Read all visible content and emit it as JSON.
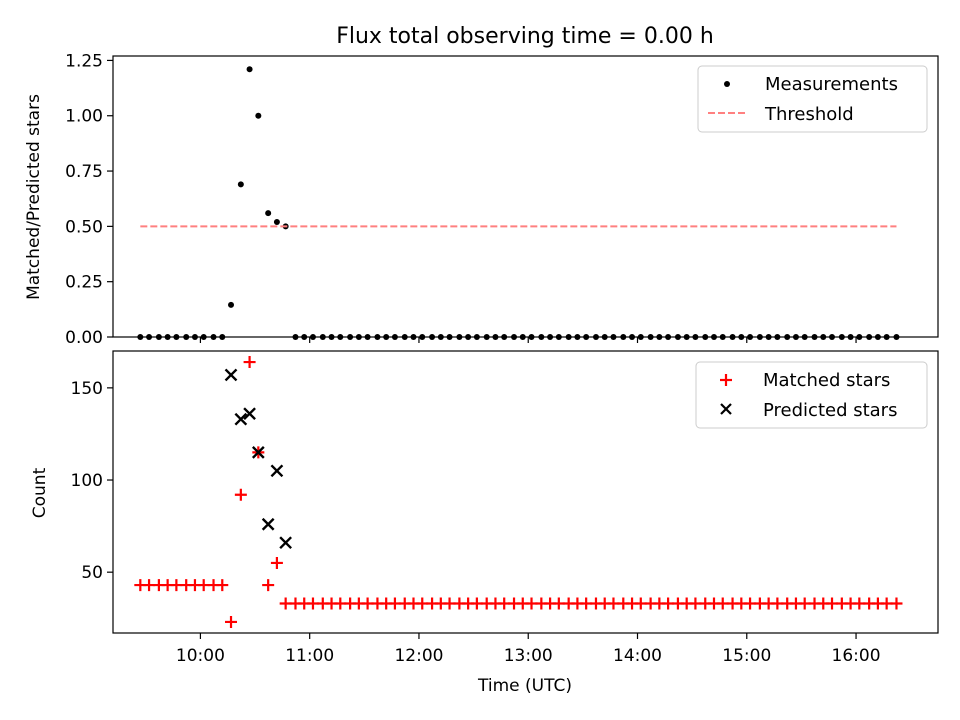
{
  "chart_data": [
    {
      "type": "scatter",
      "title": "Flux total observing time = 0.00 h",
      "xlabel": "",
      "ylabel": "Matched/Predicted stars",
      "xlim": [
        9.2,
        16.75
      ],
      "ylim": [
        0,
        1.27
      ],
      "yticks": [
        0,
        0.25,
        0.5,
        0.75,
        1.0,
        1.25
      ],
      "ytick_labels": [
        "0.00",
        "0.25",
        "0.50",
        "0.75",
        "1.00",
        "1.25"
      ],
      "legend": {
        "position": "top-right",
        "entries": [
          "Measurements",
          "Threshold"
        ]
      },
      "series": [
        {
          "name": "Measurements",
          "kind": "scatter",
          "marker": "dot",
          "color": "#000000",
          "points": [
            [
              9.45,
              0
            ],
            [
              9.53,
              0
            ],
            [
              9.62,
              0
            ],
            [
              9.7,
              0
            ],
            [
              9.78,
              0
            ],
            [
              9.87,
              0
            ],
            [
              9.95,
              0
            ],
            [
              10.03,
              0
            ],
            [
              10.12,
              0
            ],
            [
              10.2,
              0
            ],
            [
              10.28,
              0.145
            ],
            [
              10.37,
              0.69
            ],
            [
              10.45,
              1.21
            ],
            [
              10.53,
              1.0
            ],
            [
              10.62,
              0.56
            ],
            [
              10.7,
              0.52
            ],
            [
              10.78,
              0.5
            ],
            [
              10.87,
              0
            ],
            [
              10.95,
              0
            ],
            [
              11.03,
              0
            ],
            [
              11.12,
              0
            ],
            [
              11.2,
              0
            ],
            [
              11.28,
              0
            ],
            [
              11.37,
              0
            ],
            [
              11.45,
              0
            ],
            [
              11.53,
              0
            ],
            [
              11.62,
              0
            ],
            [
              11.7,
              0
            ],
            [
              11.78,
              0
            ],
            [
              11.87,
              0
            ],
            [
              11.95,
              0
            ],
            [
              12.03,
              0
            ],
            [
              12.12,
              0
            ],
            [
              12.2,
              0
            ],
            [
              12.28,
              0
            ],
            [
              12.37,
              0
            ],
            [
              12.45,
              0
            ],
            [
              12.53,
              0
            ],
            [
              12.62,
              0
            ],
            [
              12.7,
              0
            ],
            [
              12.78,
              0
            ],
            [
              12.87,
              0
            ],
            [
              12.95,
              0
            ],
            [
              13.03,
              0
            ],
            [
              13.12,
              0
            ],
            [
              13.2,
              0
            ],
            [
              13.28,
              0
            ],
            [
              13.37,
              0
            ],
            [
              13.45,
              0
            ],
            [
              13.53,
              0
            ],
            [
              13.62,
              0
            ],
            [
              13.7,
              0
            ],
            [
              13.78,
              0
            ],
            [
              13.87,
              0
            ],
            [
              13.95,
              0
            ],
            [
              14.03,
              0
            ],
            [
              14.12,
              0
            ],
            [
              14.2,
              0
            ],
            [
              14.28,
              0
            ],
            [
              14.37,
              0
            ],
            [
              14.45,
              0
            ],
            [
              14.53,
              0
            ],
            [
              14.62,
              0
            ],
            [
              14.7,
              0
            ],
            [
              14.78,
              0
            ],
            [
              14.87,
              0
            ],
            [
              14.95,
              0
            ],
            [
              15.03,
              0
            ],
            [
              15.12,
              0
            ],
            [
              15.2,
              0
            ],
            [
              15.28,
              0
            ],
            [
              15.37,
              0
            ],
            [
              15.45,
              0
            ],
            [
              15.53,
              0
            ],
            [
              15.62,
              0
            ],
            [
              15.7,
              0
            ],
            [
              15.78,
              0
            ],
            [
              15.87,
              0
            ],
            [
              15.95,
              0
            ],
            [
              16.03,
              0
            ],
            [
              16.12,
              0
            ],
            [
              16.2,
              0
            ],
            [
              16.28,
              0
            ],
            [
              16.37,
              0
            ]
          ]
        },
        {
          "name": "Threshold",
          "kind": "line",
          "style": "dashed",
          "color": "#ff8080",
          "points": [
            [
              9.45,
              0.5
            ],
            [
              16.37,
              0.5
            ]
          ]
        }
      ]
    },
    {
      "type": "scatter",
      "title": "",
      "xlabel": "Time (UTC)",
      "ylabel": "Count",
      "xlim": [
        9.2,
        16.75
      ],
      "ylim": [
        17,
        170
      ],
      "yticks": [
        50,
        100,
        150
      ],
      "ytick_labels": [
        "50",
        "100",
        "150"
      ],
      "xticks": [
        10,
        11,
        12,
        13,
        14,
        15,
        16
      ],
      "xtick_labels": [
        "10:00",
        "11:00",
        "12:00",
        "13:00",
        "14:00",
        "15:00",
        "16:00"
      ],
      "legend": {
        "position": "top-right",
        "entries": [
          "Matched stars",
          "Predicted stars"
        ]
      },
      "series": [
        {
          "name": "Matched stars",
          "kind": "scatter",
          "marker": "plus",
          "color": "#ff0000",
          "points": [
            [
              9.45,
              43
            ],
            [
              9.53,
              43
            ],
            [
              9.62,
              43
            ],
            [
              9.7,
              43
            ],
            [
              9.78,
              43
            ],
            [
              9.87,
              43
            ],
            [
              9.95,
              43
            ],
            [
              10.03,
              43
            ],
            [
              10.12,
              43
            ],
            [
              10.2,
              43
            ],
            [
              10.28,
              23
            ],
            [
              10.37,
              92
            ],
            [
              10.45,
              164
            ],
            [
              10.53,
              115
            ],
            [
              10.62,
              43
            ],
            [
              10.7,
              55
            ],
            [
              10.78,
              33
            ],
            [
              10.87,
              33
            ],
            [
              10.95,
              33
            ],
            [
              11.03,
              33
            ],
            [
              11.12,
              33
            ],
            [
              11.2,
              33
            ],
            [
              11.28,
              33
            ],
            [
              11.37,
              33
            ],
            [
              11.45,
              33
            ],
            [
              11.53,
              33
            ],
            [
              11.62,
              33
            ],
            [
              11.7,
              33
            ],
            [
              11.78,
              33
            ],
            [
              11.87,
              33
            ],
            [
              11.95,
              33
            ],
            [
              12.03,
              33
            ],
            [
              12.12,
              33
            ],
            [
              12.2,
              33
            ],
            [
              12.28,
              33
            ],
            [
              12.37,
              33
            ],
            [
              12.45,
              33
            ],
            [
              12.53,
              33
            ],
            [
              12.62,
              33
            ],
            [
              12.7,
              33
            ],
            [
              12.78,
              33
            ],
            [
              12.87,
              33
            ],
            [
              12.95,
              33
            ],
            [
              13.03,
              33
            ],
            [
              13.12,
              33
            ],
            [
              13.2,
              33
            ],
            [
              13.28,
              33
            ],
            [
              13.37,
              33
            ],
            [
              13.45,
              33
            ],
            [
              13.53,
              33
            ],
            [
              13.62,
              33
            ],
            [
              13.7,
              33
            ],
            [
              13.78,
              33
            ],
            [
              13.87,
              33
            ],
            [
              13.95,
              33
            ],
            [
              14.03,
              33
            ],
            [
              14.12,
              33
            ],
            [
              14.2,
              33
            ],
            [
              14.28,
              33
            ],
            [
              14.37,
              33
            ],
            [
              14.45,
              33
            ],
            [
              14.53,
              33
            ],
            [
              14.62,
              33
            ],
            [
              14.7,
              33
            ],
            [
              14.78,
              33
            ],
            [
              14.87,
              33
            ],
            [
              14.95,
              33
            ],
            [
              15.03,
              33
            ],
            [
              15.12,
              33
            ],
            [
              15.2,
              33
            ],
            [
              15.28,
              33
            ],
            [
              15.37,
              33
            ],
            [
              15.45,
              33
            ],
            [
              15.53,
              33
            ],
            [
              15.62,
              33
            ],
            [
              15.7,
              33
            ],
            [
              15.78,
              33
            ],
            [
              15.87,
              33
            ],
            [
              15.95,
              33
            ],
            [
              16.03,
              33
            ],
            [
              16.12,
              33
            ],
            [
              16.2,
              33
            ],
            [
              16.28,
              33
            ],
            [
              16.37,
              33
            ]
          ]
        },
        {
          "name": "Predicted stars",
          "kind": "scatter",
          "marker": "x",
          "color": "#000000",
          "points": [
            [
              10.28,
              157
            ],
            [
              10.37,
              133
            ],
            [
              10.45,
              136
            ],
            [
              10.53,
              115
            ],
            [
              10.62,
              76
            ],
            [
              10.7,
              105
            ],
            [
              10.78,
              66
            ]
          ]
        }
      ]
    }
  ]
}
